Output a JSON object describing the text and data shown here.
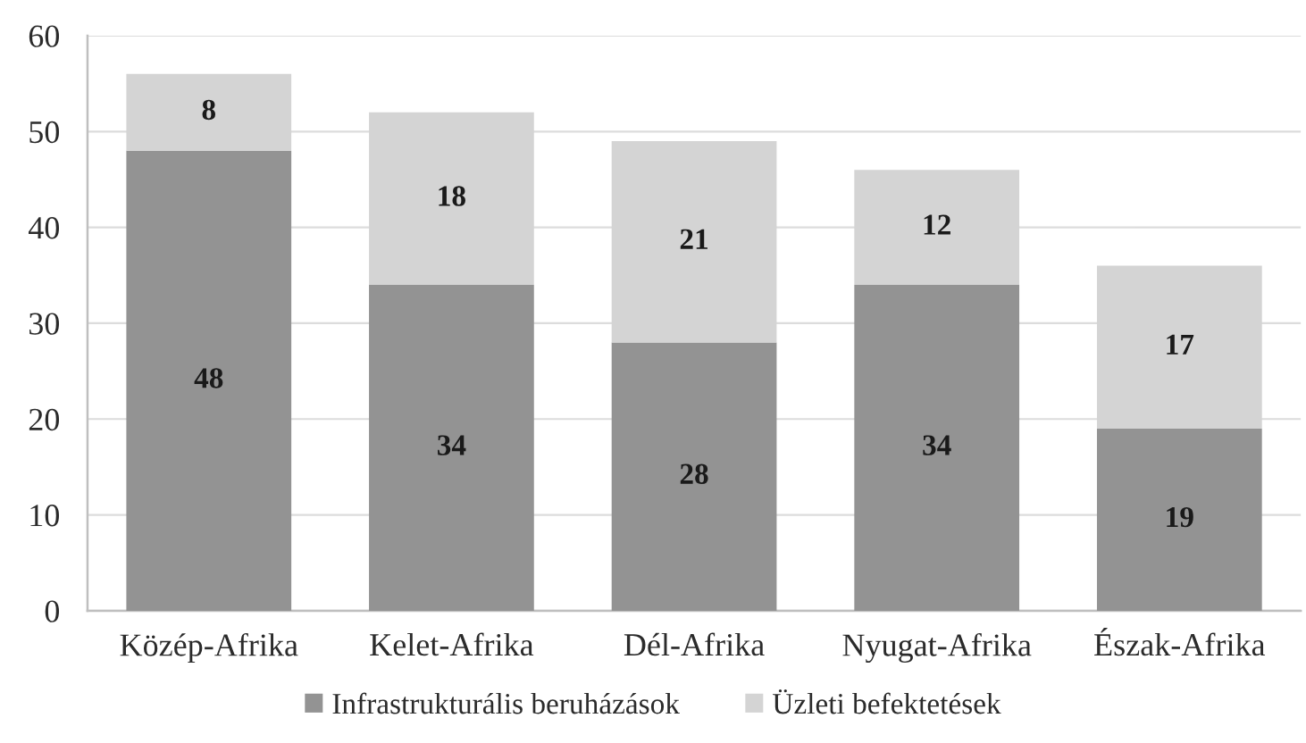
{
  "chart_data": {
    "type": "bar",
    "stacked": true,
    "categories": [
      "Közép-Afrika",
      "Kelet-Afrika",
      "Dél-Afrika",
      "Nyugat-Afrika",
      "Észak-Afrika"
    ],
    "series": [
      {
        "name": "Infrastrukturális beruházások",
        "color": "#939393",
        "values": [
          48,
          34,
          28,
          34,
          19
        ]
      },
      {
        "name": "Üzleti befektetések",
        "color": "#d4d4d4",
        "values": [
          8,
          18,
          21,
          12,
          17
        ]
      }
    ],
    "ylim": [
      0,
      60
    ],
    "yticks": [
      0,
      10,
      20,
      30,
      40,
      50,
      60
    ],
    "grid": "y",
    "legend": "bottom",
    "data_labels": true
  }
}
